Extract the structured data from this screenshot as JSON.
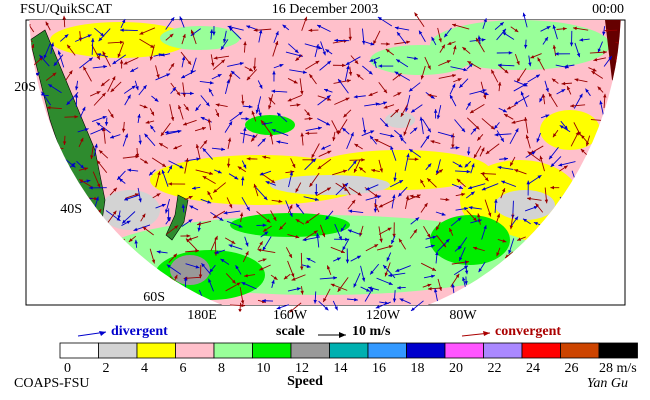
{
  "header": {
    "title": "FSU/QuikSCAT",
    "date": "16 December 2003",
    "time": "00:00"
  },
  "map": {
    "lat_labels": [
      "20S",
      "40S",
      "60S"
    ],
    "lon_labels": [
      "180E",
      "160W",
      "120W",
      "80W"
    ]
  },
  "legend": {
    "divergent": "divergent",
    "scale": "scale",
    "scale_value": "10 m/s",
    "convergent": "convergent"
  },
  "colorbar": {
    "title": "Speed",
    "bins": [
      {
        "label": "0",
        "color": "#ffffff"
      },
      {
        "label": "2",
        "color": "#d3d3d3"
      },
      {
        "label": "4",
        "color": "#ffff00"
      },
      {
        "label": "6",
        "color": "#ffc0cb"
      },
      {
        "label": "8",
        "color": "#99ff99"
      },
      {
        "label": "10",
        "color": "#00ee00"
      },
      {
        "label": "12",
        "color": "#999999"
      },
      {
        "label": "14",
        "color": "#00b0b0"
      },
      {
        "label": "16",
        "color": "#3399ff"
      },
      {
        "label": "18",
        "color": "#0000cc"
      },
      {
        "label": "20",
        "color": "#ff55ff"
      },
      {
        "label": "22",
        "color": "#aa88ff"
      },
      {
        "label": "24",
        "color": "#ff0000"
      },
      {
        "label": "26",
        "color": "#cc4400"
      },
      {
        "label": "28 m/s",
        "color": "#000000"
      }
    ]
  },
  "footer": {
    "credit": "COAPS-FSU",
    "author": "Yan Gu"
  }
}
